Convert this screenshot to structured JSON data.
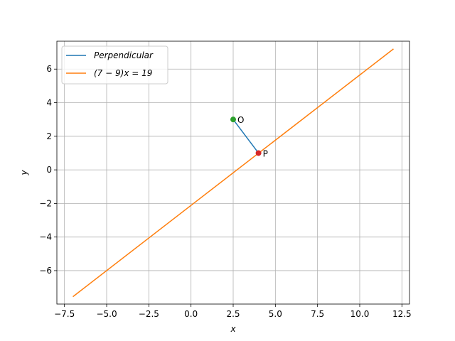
{
  "chart_data": {
    "type": "line",
    "xlabel": "x",
    "ylabel": "y",
    "xlim": [
      -7.95,
      12.95
    ],
    "ylim": [
      -7.99,
      7.66
    ],
    "x_ticks": [
      -7.5,
      -5.0,
      -2.5,
      0.0,
      2.5,
      5.0,
      7.5,
      10.0,
      12.5
    ],
    "x_tick_labels": [
      "−7.5",
      "−5.0",
      "−2.5",
      "0.0",
      "2.5",
      "5.0",
      "7.5",
      "10.0",
      "12.5"
    ],
    "y_ticks": [
      -6,
      -4,
      -2,
      0,
      2,
      4,
      6
    ],
    "y_tick_labels": [
      "−6",
      "−4",
      "−2",
      "0",
      "2",
      "4",
      "6"
    ],
    "grid": true,
    "legend_position": "upper-left",
    "series": [
      {
        "name": "Perpendicular",
        "color": "#1f77b4",
        "x": [
          2.5,
          4.0
        ],
        "y": [
          3.0,
          1.0
        ]
      },
      {
        "name": "(7 − 9)x = 19",
        "color": "#ff7f0e",
        "x": [
          -7.0,
          12.0
        ],
        "y": [
          -7.55,
          7.2
        ]
      }
    ],
    "points": [
      {
        "label": "O",
        "x": 2.5,
        "y": 3.0,
        "color": "#2ca02c"
      },
      {
        "label": "P",
        "x": 4.0,
        "y": 1.0,
        "color": "#d62728"
      }
    ]
  }
}
